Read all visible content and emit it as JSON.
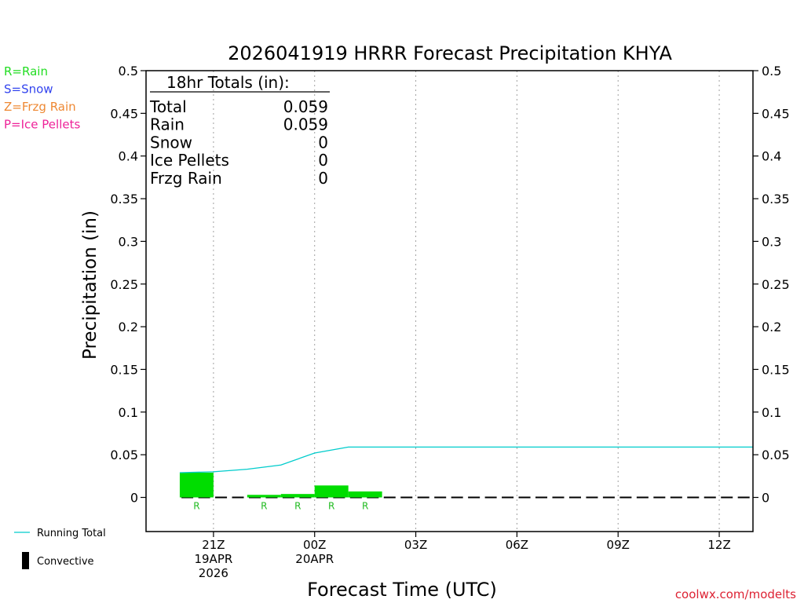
{
  "chart_data": {
    "type": "bar",
    "title": "2026041919 HRRR Forecast Precipitation KHYA",
    "xlabel": "Forecast Time (UTC)",
    "ylabel": "Precipitation (in)",
    "ylim": [
      -0.04,
      0.5
    ],
    "y_ticks": [
      0,
      0.05,
      0.1,
      0.15,
      0.2,
      0.25,
      0.3,
      0.35,
      0.4,
      0.45,
      0.5
    ],
    "y_tick_labels": [
      "0",
      "0.05",
      "0.1",
      "0.15",
      "0.2",
      "0.25",
      "0.3",
      "0.35",
      "0.4",
      "0.45",
      "0.5"
    ],
    "xlim_hours": [
      19,
      37
    ],
    "x_ticks": [
      {
        "hour": 21,
        "lines": [
          "21Z",
          "19APR",
          "2026"
        ]
      },
      {
        "hour": 24,
        "lines": [
          "00Z",
          "20APR"
        ]
      },
      {
        "hour": 27,
        "lines": [
          "03Z"
        ]
      },
      {
        "hour": 30,
        "lines": [
          "06Z"
        ]
      },
      {
        "hour": 33,
        "lines": [
          "09Z"
        ]
      },
      {
        "hour": 36,
        "lines": [
          "12Z"
        ]
      }
    ],
    "grid": "vertical dotted",
    "precip_type_legend": [
      {
        "label": "R=Rain",
        "color": "#22dd22"
      },
      {
        "label": "S=Snow",
        "color": "#3344ee"
      },
      {
        "label": "Z=Frzg Rain",
        "color": "#ee8833"
      },
      {
        "label": "P=Ice Pellets",
        "color": "#ee2299"
      }
    ],
    "series_legend": [
      {
        "label": "Running Total",
        "kind": "line",
        "color": "#00cccc"
      },
      {
        "label": "Convective",
        "kind": "bar",
        "color": "#000000"
      }
    ],
    "hourly_precip": {
      "color": "#00dd00",
      "bars": [
        {
          "start": 20,
          "end": 21,
          "value": 0.029,
          "type": "R"
        },
        {
          "start": 21,
          "end": 22,
          "value": 0.0,
          "type": ""
        },
        {
          "start": 22,
          "end": 23,
          "value": 0.003,
          "type": "R"
        },
        {
          "start": 23,
          "end": 24,
          "value": 0.004,
          "type": "R"
        },
        {
          "start": 24,
          "end": 25,
          "value": 0.014,
          "type": "R"
        },
        {
          "start": 25,
          "end": 26,
          "value": 0.007,
          "type": "R"
        }
      ]
    },
    "running_total": {
      "color": "#00cccc",
      "points": [
        [
          20,
          0.029
        ],
        [
          21,
          0.03
        ],
        [
          22,
          0.033
        ],
        [
          23,
          0.038
        ],
        [
          24,
          0.052
        ],
        [
          25,
          0.059
        ],
        [
          37,
          0.059
        ]
      ]
    },
    "convective": {
      "color": "#000000",
      "dashes_from": 20,
      "dashes_to": 37,
      "values": "0"
    },
    "totals_box": {
      "heading": "18hr Totals (in):",
      "rows": [
        {
          "label": "Total",
          "value": "0.059"
        },
        {
          "label": "Rain",
          "value": "0.059"
        },
        {
          "label": "Snow",
          "value": "0"
        },
        {
          "label": "Ice Pellets",
          "value": "0"
        },
        {
          "label": "Frzg Rain",
          "value": "0"
        }
      ]
    },
    "credit": {
      "text": "coolwx.com/modelts",
      "color": "#dd2233"
    }
  }
}
